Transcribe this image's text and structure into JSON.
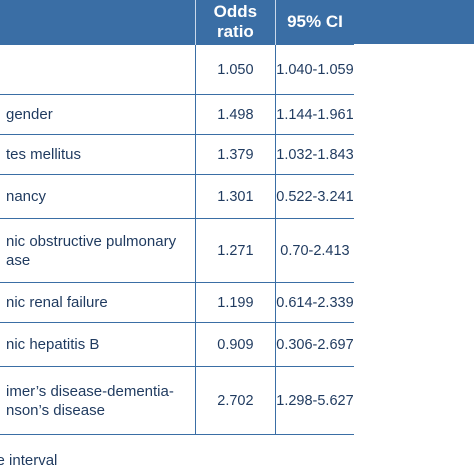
{
  "table": {
    "headers": [
      "",
      "Odds ratio",
      "95% CI"
    ],
    "rows": [
      {
        "label": [
          ""
        ],
        "odds_ratio": "1.050",
        "ci": "1.040-1.059",
        "height": 50
      },
      {
        "label": [
          "gender"
        ],
        "odds_ratio": "1.498",
        "ci": "1.144-1.961",
        "height": 40
      },
      {
        "label": [
          "tes mellitus"
        ],
        "odds_ratio": "1.379",
        "ci": "1.032-1.843",
        "height": 40
      },
      {
        "label": [
          "nancy"
        ],
        "odds_ratio": "1.301",
        "ci": "0.522-3.241",
        "height": 44
      },
      {
        "label": [
          "nic obstructive pulmonary",
          "ase"
        ],
        "odds_ratio": "1.271",
        "ci": "0.70-2.413",
        "height": 64
      },
      {
        "label": [
          "nic renal failure"
        ],
        "odds_ratio": "1.199",
        "ci": "0.614-2.339",
        "height": 40
      },
      {
        "label": [
          "nic hepatitis B"
        ],
        "odds_ratio": "0.909",
        "ci": "0.306-2.697",
        "height": 44
      },
      {
        "label": [
          "imer’s disease-dementia-",
          "nson’s disease"
        ],
        "odds_ratio": "2.702",
        "ci": "1.298-5.627",
        "height": 68
      }
    ]
  },
  "footnote": "dence interval"
}
